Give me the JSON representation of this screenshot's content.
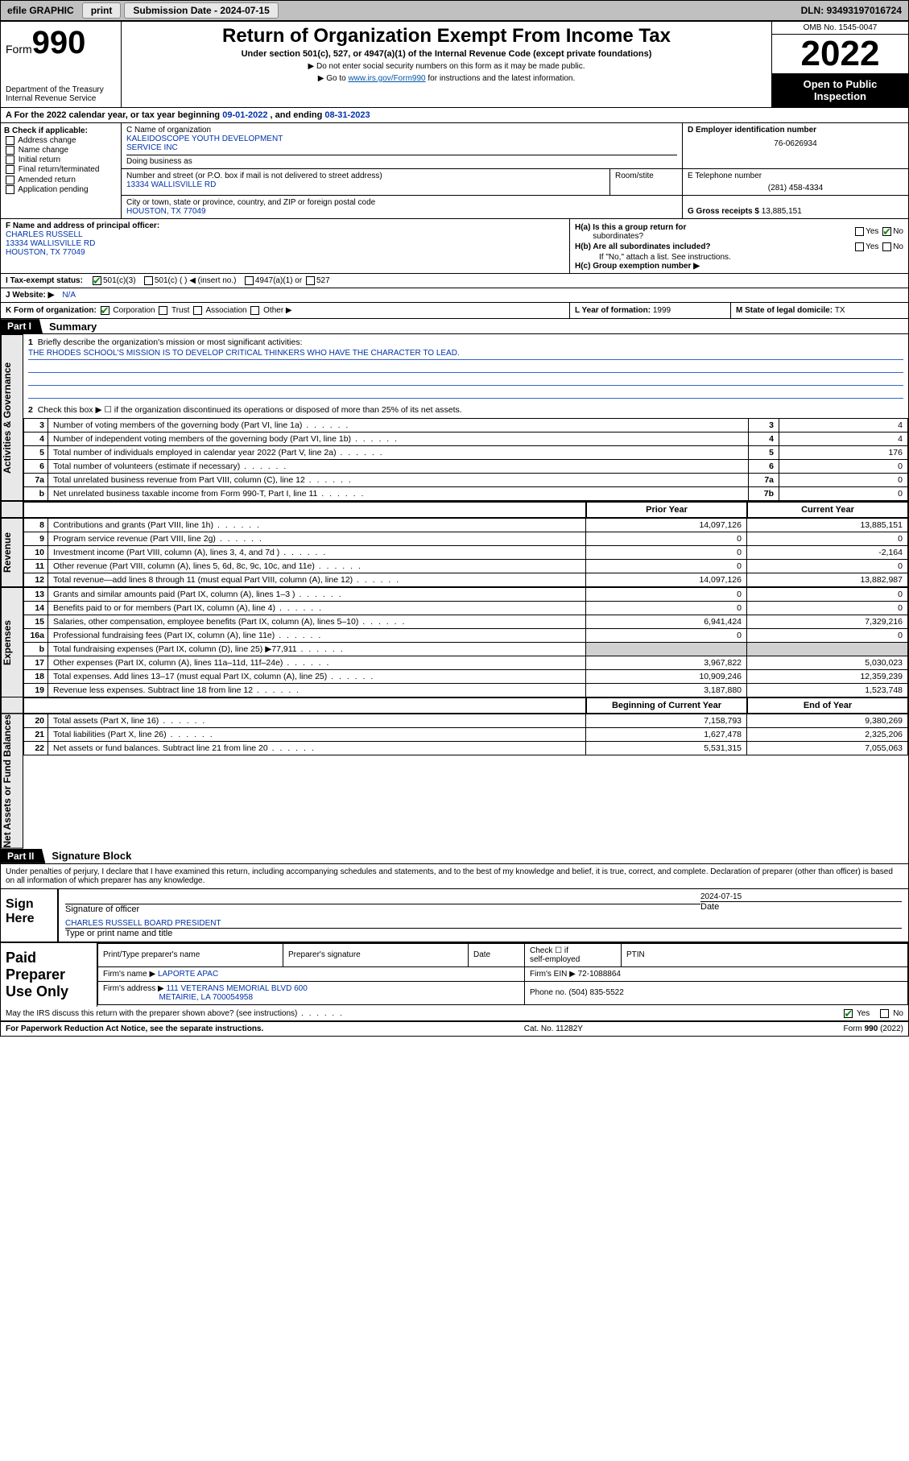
{
  "topbar": {
    "efile": "efile GRAPHIC",
    "print": "print",
    "sub_label": "Submission Date - ",
    "sub_date": "2024-07-15",
    "dln_label": "DLN: ",
    "dln": "93493197016724"
  },
  "header": {
    "form_word": "Form",
    "form_num": "990",
    "dept": "Department of the Treasury",
    "irs": "Internal Revenue Service",
    "title": "Return of Organization Exempt From Income Tax",
    "sub": "Under section 501(c), 527, or 4947(a)(1) of the Internal Revenue Code (except private foundations)",
    "note1": "▶ Do not enter social security numbers on this form as it may be made public.",
    "note2_a": "▶ Go to ",
    "note2_link": "www.irs.gov/Form990",
    "note2_b": " for instructions and the latest information.",
    "omb": "OMB No. 1545-0047",
    "year": "2022",
    "inspect1": "Open to Public",
    "inspect2": "Inspection"
  },
  "line_a": {
    "pre": "A For the 2022 calendar year, or tax year beginning ",
    "begin": "09-01-2022",
    "mid": " , and ending ",
    "end": "08-31-2023"
  },
  "b": {
    "title": "B Check if applicable:",
    "addr": "Address change",
    "name": "Name change",
    "init": "Initial return",
    "final": "Final return/terminated",
    "amend": "Amended return",
    "app": "Application pending"
  },
  "c": {
    "label": "C Name of organization",
    "name1": "KALEIDOSCOPE YOUTH DEVELOPMENT",
    "name2": "SERVICE INC",
    "dba": "Doing business as",
    "addr_label": "Number and street (or P.O. box if mail is not delivered to street address)",
    "addr": "13334 WALLISVILLE RD",
    "suite": "Room/stite",
    "city_label": "City or town, state or province, country, and ZIP or foreign postal code",
    "city": "HOUSTON, TX  77049"
  },
  "d": {
    "label": "D Employer identification number",
    "val": "76-0626934"
  },
  "e": {
    "label": "E Telephone number",
    "val": "(281) 458-4334"
  },
  "g": {
    "label": "G Gross receipts $ ",
    "val": "13,885,151"
  },
  "f": {
    "label": "F Name and address of principal officer:",
    "l1": "CHARLES RUSSELL",
    "l2": "13334 WALLISVILLE RD",
    "l3": "HOUSTON, TX  77049"
  },
  "h": {
    "a": "H(a)  Is this a group return for",
    "a2": "subordinates?",
    "b": "H(b)  Are all subordinates included?",
    "bnote": "If \"No,\" attach a list. See instructions.",
    "c": "H(c)  Group exemption number ▶",
    "yes": "Yes",
    "no": "No"
  },
  "i": {
    "label": "I   Tax-exempt status:",
    "o1": "501(c)(3)",
    "o2": "501(c) (  ) ◀ (insert no.)",
    "o3": "4947(a)(1) or",
    "o4": "527"
  },
  "j": {
    "label": "J   Website: ▶",
    "val": "N/A"
  },
  "k": {
    "label": "K Form of organization:",
    "corp": "Corporation",
    "trust": "Trust",
    "assoc": "Association",
    "other": "Other ▶"
  },
  "l": {
    "label": "L Year of formation: ",
    "val": "1999"
  },
  "m": {
    "label": "M State of legal domicile: ",
    "val": "TX"
  },
  "part1": {
    "hdr": "Part I",
    "title": "Summary",
    "l1": "Briefly describe the organization's mission or most significant activities:",
    "mission": "THE RHODES SCHOOL'S MISSION IS TO DEVELOP CRITICAL THINKERS WHO HAVE THE CHARACTER TO LEAD.",
    "l2": "Check this box ▶ ☐  if the organization discontinued its operations or disposed of more than 25% of its net assets."
  },
  "vlabels": {
    "gov": "Activities & Governance",
    "rev": "Revenue",
    "exp": "Expenses",
    "net": "Net Assets or Fund Balances"
  },
  "gov_rows": [
    {
      "n": "3",
      "d": "Number of voting members of the governing body (Part VI, line 1a)",
      "k": "3",
      "v": "4"
    },
    {
      "n": "4",
      "d": "Number of independent voting members of the governing body (Part VI, line 1b)",
      "k": "4",
      "v": "4"
    },
    {
      "n": "5",
      "d": "Total number of individuals employed in calendar year 2022 (Part V, line 2a)",
      "k": "5",
      "v": "176"
    },
    {
      "n": "6",
      "d": "Total number of volunteers (estimate if necessary)",
      "k": "6",
      "v": "0"
    },
    {
      "n": "7a",
      "d": "Total unrelated business revenue from Part VIII, column (C), line 12",
      "k": "7a",
      "v": "0"
    },
    {
      "n": "b",
      "d": "Net unrelated business taxable income from Form 990-T, Part I, line 11",
      "k": "7b",
      "v": "0"
    }
  ],
  "col_hdr": {
    "prior": "Prior Year",
    "curr": "Current Year"
  },
  "rev_rows": [
    {
      "n": "8",
      "d": "Contributions and grants (Part VIII, line 1h)",
      "p": "14,097,126",
      "c": "13,885,151"
    },
    {
      "n": "9",
      "d": "Program service revenue (Part VIII, line 2g)",
      "p": "0",
      "c": "0"
    },
    {
      "n": "10",
      "d": "Investment income (Part VIII, column (A), lines 3, 4, and 7d )",
      "p": "0",
      "c": "-2,164"
    },
    {
      "n": "11",
      "d": "Other revenue (Part VIII, column (A), lines 5, 6d, 8c, 9c, 10c, and 11e)",
      "p": "0",
      "c": "0"
    },
    {
      "n": "12",
      "d": "Total revenue—add lines 8 through 11 (must equal Part VIII, column (A), line 12)",
      "p": "14,097,126",
      "c": "13,882,987"
    }
  ],
  "exp_rows": [
    {
      "n": "13",
      "d": "Grants and similar amounts paid (Part IX, column (A), lines 1–3 )",
      "p": "0",
      "c": "0"
    },
    {
      "n": "14",
      "d": "Benefits paid to or for members (Part IX, column (A), line 4)",
      "p": "0",
      "c": "0"
    },
    {
      "n": "15",
      "d": "Salaries, other compensation, employee benefits (Part IX, column (A), lines 5–10)",
      "p": "6,941,424",
      "c": "7,329,216"
    },
    {
      "n": "16a",
      "d": "Professional fundraising fees (Part IX, column (A), line 11e)",
      "p": "0",
      "c": "0"
    },
    {
      "n": "b",
      "d": "Total fundraising expenses (Part IX, column (D), line 25) ▶77,911",
      "p": "",
      "c": "",
      "shade": true
    },
    {
      "n": "17",
      "d": "Other expenses (Part IX, column (A), lines 11a–11d, 11f–24e)",
      "p": "3,967,822",
      "c": "5,030,023"
    },
    {
      "n": "18",
      "d": "Total expenses. Add lines 13–17 (must equal Part IX, column (A), line 25)",
      "p": "10,909,246",
      "c": "12,359,239"
    },
    {
      "n": "19",
      "d": "Revenue less expenses. Subtract line 18 from line 12",
      "p": "3,187,880",
      "c": "1,523,748"
    }
  ],
  "net_hdr": {
    "b": "Beginning of Current Year",
    "e": "End of Year"
  },
  "net_rows": [
    {
      "n": "20",
      "d": "Total assets (Part X, line 16)",
      "p": "7,158,793",
      "c": "9,380,269"
    },
    {
      "n": "21",
      "d": "Total liabilities (Part X, line 26)",
      "p": "1,627,478",
      "c": "2,325,206"
    },
    {
      "n": "22",
      "d": "Net assets or fund balances. Subtract line 21 from line 20",
      "p": "5,531,315",
      "c": "7,055,063"
    }
  ],
  "part2": {
    "hdr": "Part II",
    "title": "Signature Block",
    "decl": "Under penalties of perjury, I declare that I have examined this return, including accompanying schedules and statements, and to the best of my knowledge and belief, it is true, correct, and complete. Declaration of preparer (other than officer) is based on all information of which preparer has any knowledge."
  },
  "sign": {
    "here": "Sign Here",
    "sig_of": "Signature of officer",
    "date_l": "Date",
    "date": "2024-07-15",
    "name": "CHARLES RUSSELL  BOARD PRESIDENT",
    "name_l": "Type or print name and title"
  },
  "prep": {
    "title": "Paid Preparer Use Only",
    "c1": "Print/Type preparer's name",
    "c2": "Preparer's signature",
    "c3": "Date",
    "c4a": "Check ☐ if",
    "c4b": "self-employed",
    "c5": "PTIN",
    "firm_l": "Firm's name   ▶ ",
    "firm": "LAPORTE APAC",
    "ein_l": "Firm's EIN ▶ ",
    "ein": "72-1088864",
    "addr_l": "Firm's address ▶ ",
    "addr1": "111 VETERANS MEMORIAL BLVD 600",
    "addr2": "METAIRIE, LA  700054958",
    "phone_l": "Phone no. ",
    "phone": "(504) 835-5522",
    "discuss": "May the IRS discuss this return with the preparer shown above? (see instructions)",
    "yes": "Yes",
    "no": "No"
  },
  "footer": {
    "l": "For Paperwork Reduction Act Notice, see the separate instructions.",
    "m": "Cat. No. 11282Y",
    "r": "Form 990 (2022)"
  }
}
